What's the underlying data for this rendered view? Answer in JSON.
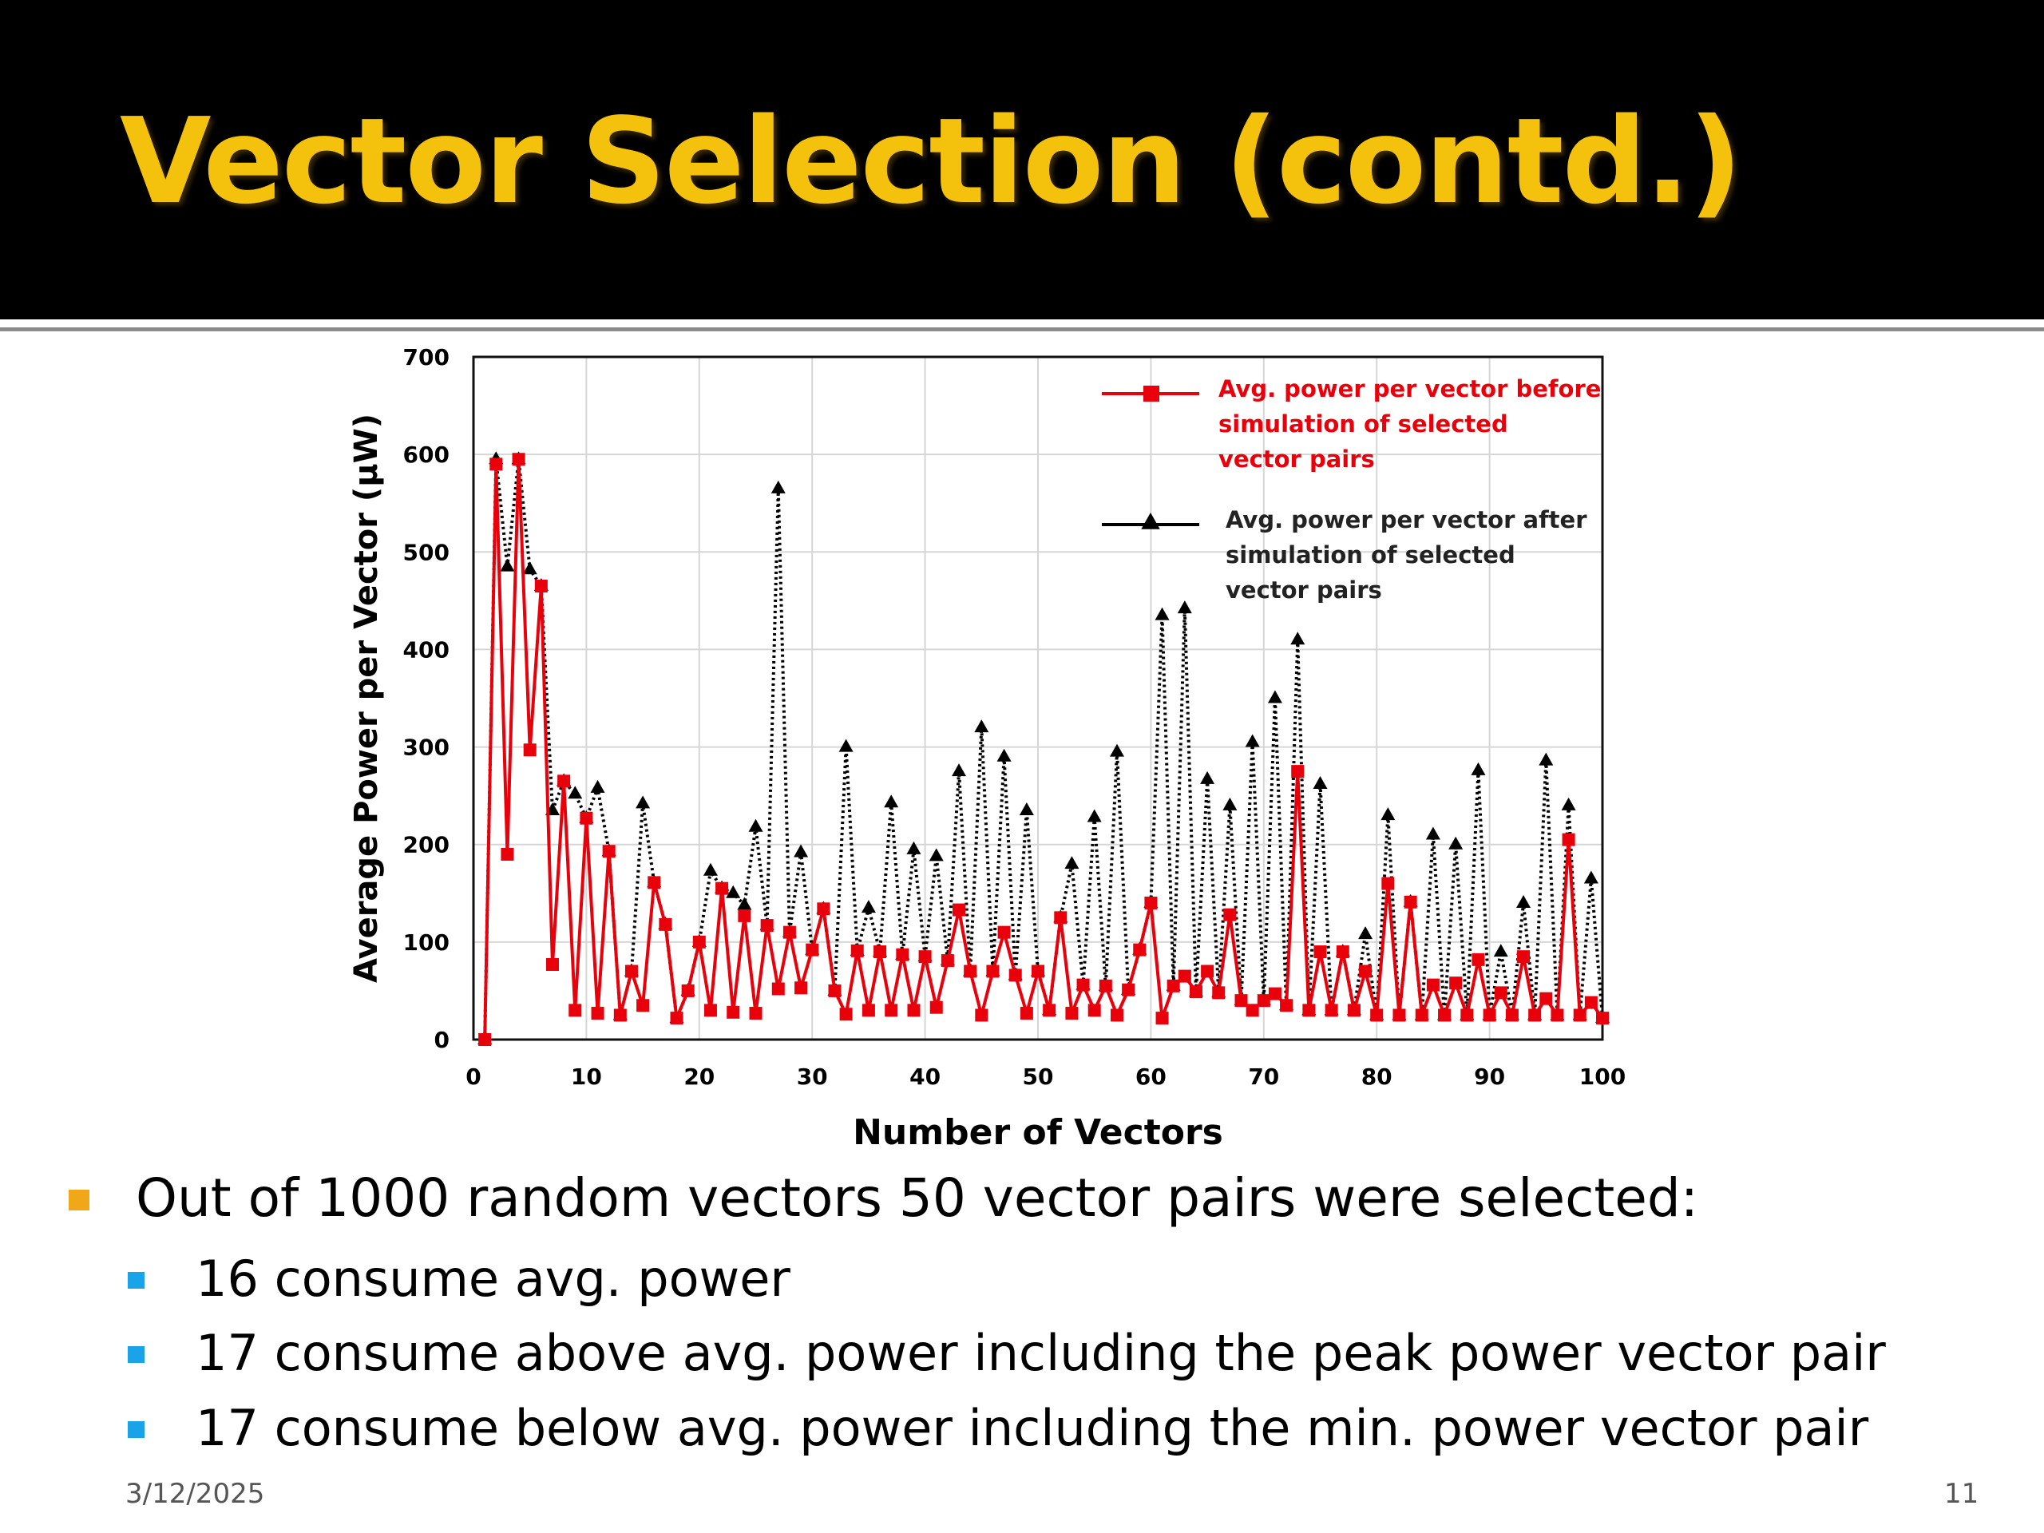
{
  "slide": {
    "title": "Vector Selection (contd.)",
    "date": "3/12/2025",
    "page_number": "11",
    "title_color": "#f4c20d",
    "bullets": {
      "main": "Out of 1000 random vectors 50 vector pairs were selected:",
      "sub": [
        "16 consume avg. power",
        "17 consume above avg. power including the peak power vector pair",
        "17 consume below avg. power including the min. power vector pair"
      ]
    }
  },
  "chart_data": {
    "type": "line",
    "xlabel": "Number of Vectors",
    "ylabel": "Average Power per Vector (μW)",
    "xlim": [
      0,
      100
    ],
    "ylim": [
      0,
      700
    ],
    "xticks": [
      0,
      10,
      20,
      30,
      40,
      50,
      60,
      70,
      80,
      90,
      100
    ],
    "yticks": [
      0,
      100,
      200,
      300,
      400,
      500,
      600,
      700
    ],
    "grid": true,
    "legend_position": "top-right",
    "x": [
      1,
      2,
      3,
      4,
      5,
      6,
      7,
      8,
      9,
      10,
      11,
      12,
      13,
      14,
      15,
      16,
      17,
      18,
      19,
      20,
      21,
      22,
      23,
      24,
      25,
      26,
      27,
      28,
      29,
      30,
      31,
      32,
      33,
      34,
      35,
      36,
      37,
      38,
      39,
      40,
      41,
      42,
      43,
      44,
      45,
      46,
      47,
      48,
      49,
      50,
      51,
      52,
      53,
      54,
      55,
      56,
      57,
      58,
      59,
      60,
      61,
      62,
      63,
      64,
      65,
      66,
      67,
      68,
      69,
      70,
      71,
      72,
      73,
      74,
      75,
      76,
      77,
      78,
      79,
      80,
      81,
      82,
      83,
      84,
      85,
      86,
      87,
      88,
      89,
      90,
      91,
      92,
      93,
      94,
      95,
      96,
      97,
      98,
      99,
      100
    ],
    "series": [
      {
        "name": "Avg. power per vector before simulation of selected vector pairs",
        "color": "#e8000b",
        "marker": "square",
        "line_style": "solid",
        "values": [
          0,
          590,
          190,
          595,
          297,
          465,
          77,
          265,
          30,
          227,
          27,
          193,
          25,
          70,
          35,
          161,
          118,
          22,
          50,
          100,
          30,
          155,
          28,
          127,
          27,
          117,
          52,
          110,
          53,
          92,
          134,
          50,
          26,
          91,
          30,
          90,
          30,
          87,
          30,
          85,
          33,
          81,
          133,
          70,
          25,
          70,
          110,
          66,
          27,
          70,
          30,
          125,
          27,
          56,
          30,
          55,
          25,
          51,
          92,
          140,
          22,
          55,
          65,
          49,
          70,
          48,
          128,
          40,
          30,
          40,
          47,
          35,
          275,
          30,
          90,
          30,
          90,
          30,
          70,
          25,
          160,
          25,
          141,
          25,
          56,
          25,
          58,
          25,
          82,
          25,
          48,
          25,
          85,
          25,
          42,
          25,
          205,
          25,
          38,
          22
        ]
      },
      {
        "name": "Avg. power per vector after simulation of selected vector pairs",
        "color": "#000000",
        "marker": "triangle",
        "line_style": "dotted",
        "values": [
          0,
          595,
          485,
          595,
          482,
          465,
          235,
          265,
          252,
          227,
          258,
          193,
          25,
          70,
          242,
          161,
          118,
          22,
          50,
          100,
          173,
          155,
          150,
          138,
          218,
          117,
          565,
          110,
          192,
          92,
          134,
          50,
          300,
          91,
          135,
          90,
          243,
          87,
          195,
          85,
          188,
          81,
          275,
          70,
          320,
          70,
          290,
          66,
          235,
          70,
          30,
          125,
          180,
          56,
          228,
          55,
          295,
          51,
          92,
          140,
          435,
          55,
          442,
          49,
          267,
          48,
          240,
          40,
          305,
          40,
          350,
          35,
          410,
          30,
          262,
          30,
          90,
          30,
          108,
          25,
          230,
          25,
          141,
          25,
          210,
          25,
          200,
          25,
          276,
          25,
          90,
          25,
          140,
          25,
          286,
          25,
          240,
          25,
          165,
          22
        ]
      }
    ]
  }
}
